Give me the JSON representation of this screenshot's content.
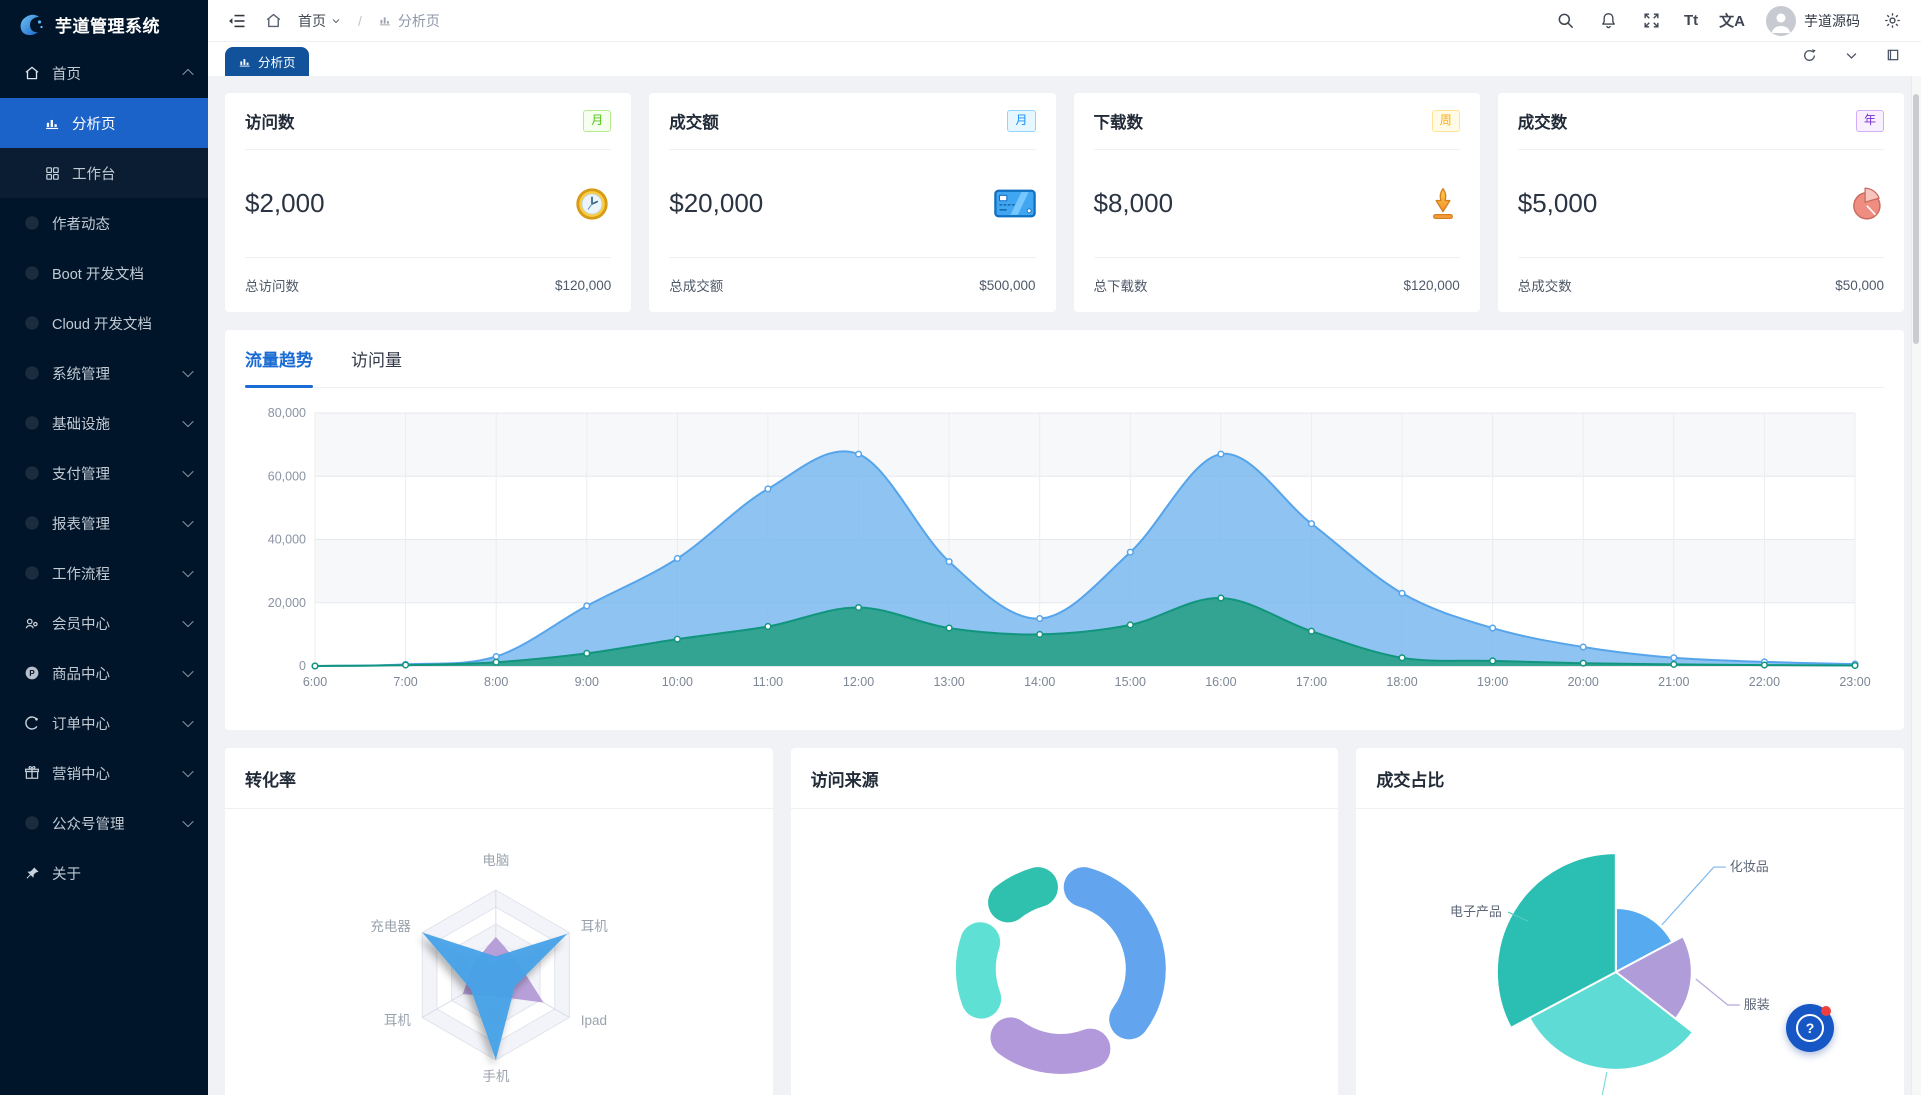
{
  "app": {
    "title": "芋道管理系统"
  },
  "sidebar": {
    "items": [
      {
        "key": "home",
        "label": "首页",
        "icon": "home",
        "chev": "up"
      },
      {
        "key": "analysis",
        "label": "分析页",
        "icon": "chart",
        "active": true,
        "sub": true
      },
      {
        "key": "workplace",
        "label": "工作台",
        "icon": "grid",
        "sub": true
      },
      {
        "key": "author",
        "label": "作者动态",
        "icon": "dot"
      },
      {
        "key": "boot-doc",
        "label": "Boot 开发文档",
        "icon": "dot"
      },
      {
        "key": "cloud-doc",
        "label": "Cloud 开发文档",
        "icon": "dot"
      },
      {
        "key": "system",
        "label": "系统管理",
        "icon": "dot",
        "chev": "down"
      },
      {
        "key": "infra",
        "label": "基础设施",
        "icon": "dot",
        "chev": "down"
      },
      {
        "key": "pay",
        "label": "支付管理",
        "icon": "dot",
        "chev": "down"
      },
      {
        "key": "report",
        "label": "报表管理",
        "icon": "dot",
        "chev": "down"
      },
      {
        "key": "workflow",
        "label": "工作流程",
        "icon": "dot",
        "chev": "down"
      },
      {
        "key": "member",
        "label": "会员中心",
        "icon": "member",
        "chev": "down"
      },
      {
        "key": "product",
        "label": "商品中心",
        "icon": "product",
        "chev": "down"
      },
      {
        "key": "order",
        "label": "订单中心",
        "icon": "order",
        "chev": "down"
      },
      {
        "key": "marketing",
        "label": "营销中心",
        "icon": "marketing",
        "chev": "down"
      },
      {
        "key": "mp",
        "label": "公众号管理",
        "icon": "dot",
        "chev": "down"
      },
      {
        "key": "about",
        "label": "关于",
        "icon": "pin"
      }
    ]
  },
  "header": {
    "breadcrumb": {
      "root": "首页",
      "separator": "/",
      "current": "分析页"
    },
    "actions": {
      "font_toggle": "Tt",
      "lang_toggle": "文A"
    },
    "user": {
      "name": "芋道源码"
    }
  },
  "tabbar": {
    "tabs": [
      {
        "label": "分析页",
        "active": true
      }
    ]
  },
  "stats": [
    {
      "title": "访问数",
      "badge": {
        "text": "月",
        "fg": "#52c41a",
        "bg": "#f6ffed",
        "bd": "#b7eb8f"
      },
      "value": "$2,000",
      "icon": "clock",
      "footer_label": "总访问数",
      "footer_value": "$120,000"
    },
    {
      "title": "成交额",
      "badge": {
        "text": "月",
        "fg": "#1890ff",
        "bg": "#e6f7ff",
        "bd": "#91d5ff"
      },
      "value": "$20,000",
      "icon": "bankcard",
      "footer_label": "总成交额",
      "footer_value": "$500,000"
    },
    {
      "title": "下载数",
      "badge": {
        "text": "周",
        "fg": "#faad14",
        "bg": "#fffbe6",
        "bd": "#ffe58f"
      },
      "value": "$8,000",
      "icon": "download",
      "footer_label": "总下载数",
      "footer_value": "$120,000"
    },
    {
      "title": "成交数",
      "badge": {
        "text": "年",
        "fg": "#722ed1",
        "bg": "#f9f0ff",
        "bd": "#d3adf7"
      },
      "value": "$5,000",
      "icon": "pie",
      "footer_label": "总成交数",
      "footer_value": "$50,000"
    }
  ],
  "trend": {
    "tabs": [
      {
        "label": "流量趋势",
        "active": true
      },
      {
        "label": "访问量",
        "active": false
      }
    ]
  },
  "fab": {
    "label": "?",
    "has_badge": true
  },
  "colors": {
    "sidebar_bg": "#001529",
    "sidebar_active": "#1b62c9",
    "tab_active": "#11529b",
    "primary": "#1a6bd4",
    "content_bg": "#f0f2f5",
    "fab_bg": "#1757c5"
  },
  "chart_data": [
    {
      "type": "area",
      "title": "流量趋势",
      "x": [
        "6:00",
        "7:00",
        "8:00",
        "9:00",
        "10:00",
        "11:00",
        "12:00",
        "13:00",
        "14:00",
        "15:00",
        "16:00",
        "17:00",
        "18:00",
        "19:00",
        "20:00",
        "21:00",
        "22:00",
        "23:00"
      ],
      "series": [
        {
          "name": "visits-blue",
          "color": "#56a4ea",
          "fill": "#6fb3ee",
          "fill_opacity": 0.78,
          "values": [
            0,
            500,
            3000,
            19000,
            34000,
            56000,
            67000,
            33000,
            15000,
            36000,
            67000,
            45000,
            23000,
            12000,
            6000,
            2600,
            1300,
            600
          ]
        },
        {
          "name": "orders-green",
          "color": "#12957e",
          "fill": "#2aa189",
          "fill_opacity": 0.92,
          "values": [
            0,
            300,
            1200,
            4000,
            8500,
            12500,
            18500,
            12000,
            10000,
            13000,
            21500,
            11000,
            2600,
            1600,
            900,
            500,
            300,
            150
          ]
        }
      ],
      "ylim": [
        0,
        80000
      ],
      "yticks": [
        0,
        20000,
        40000,
        60000,
        80000
      ],
      "ytick_labels": [
        "0",
        "20,000",
        "40,000",
        "60,000",
        "80,000"
      ],
      "grid": true,
      "legend": "none"
    },
    {
      "type": "radar",
      "title": "转化率",
      "axes": [
        "电脑",
        "耳机",
        "Ipad",
        "手机",
        "耳机",
        "充电器"
      ],
      "max": 100,
      "series": [
        {
          "name": "series-purple",
          "color": "#b39bd6",
          "values": [
            45,
            30,
            65,
            25,
            45,
            30
          ]
        },
        {
          "name": "series-blue",
          "color": "#47a2e8",
          "values": [
            22,
            97,
            26,
            100,
            34,
            100
          ]
        }
      ],
      "levels": 5
    },
    {
      "type": "donut",
      "title": "访问来源",
      "segments": [
        {
          "name": "segment-blue",
          "color": "#62a5ee",
          "start_deg": 2,
          "end_deg": 140,
          "pct": 38
        },
        {
          "name": "segment-purple",
          "color": "#b199dc",
          "start_deg": 146,
          "end_deg": 230,
          "pct": 23
        },
        {
          "name": "segment-cyan",
          "color": "#5fe0d4",
          "start_deg": 236,
          "end_deg": 302,
          "pct": 18
        },
        {
          "name": "segment-teal",
          "color": "#2fc1ae",
          "start_deg": 308,
          "end_deg": 358,
          "pct": 14
        }
      ],
      "inner_radius_ratio": 0.65
    },
    {
      "type": "pie",
      "title": "成交占比",
      "rose": true,
      "slices": [
        {
          "label": "化妆品",
          "color": "#55aaf0",
          "start_deg": 0,
          "end_deg": 62,
          "radius": 64
        },
        {
          "label": "服装",
          "color": "#af9cd9",
          "start_deg": 62,
          "end_deg": 128,
          "radius": 76
        },
        {
          "label": "",
          "color": "#5fdbd5",
          "start_deg": 128,
          "end_deg": 242,
          "radius": 98
        },
        {
          "label": "电子产品",
          "color": "#2bbfb3",
          "start_deg": 242,
          "end_deg": 360,
          "radius": 119
        }
      ]
    }
  ]
}
